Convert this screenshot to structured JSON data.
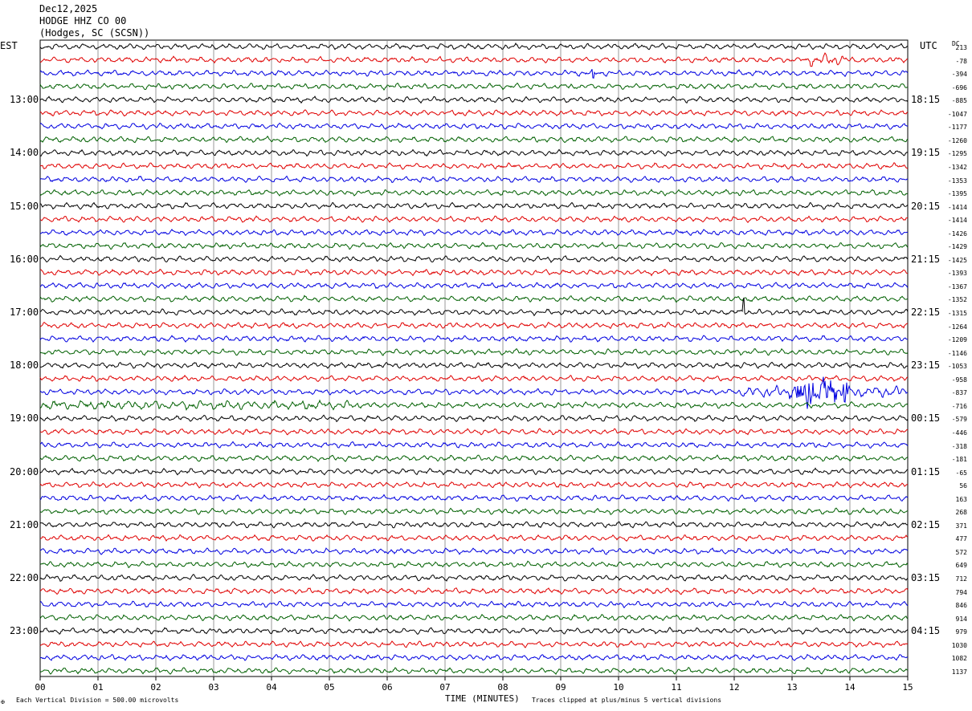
{
  "header": {
    "date": "Dec12,2025",
    "station": "HODGE HHZ CO 00",
    "location": "(Hodges, SC (SCSN))"
  },
  "axes": {
    "left_label": "EST",
    "right_label": "UTC",
    "dc_label": "DC",
    "xlabel": "TIME (MINUTES)",
    "x_ticks": [
      "00",
      "01",
      "02",
      "03",
      "04",
      "05",
      "06",
      "07",
      "08",
      "09",
      "10",
      "11",
      "12",
      "13",
      "14",
      "15"
    ]
  },
  "footer": {
    "scale_mark": "✠",
    "division_note": "Each Vertical Division =  500.00 microvolts",
    "clip_note": "Traces clipped at plus/minus 5 vertical divisions"
  },
  "colors": {
    "trace_cycle": [
      "#000000",
      "#e00000",
      "#0000e0",
      "#006000"
    ],
    "grid": "#808080",
    "background": "#ffffff"
  },
  "chart_data": {
    "type": "line",
    "title": "HODGE HHZ CO 00",
    "xlabel": "TIME (MINUTES)",
    "xlim": [
      0,
      15
    ],
    "minutes_per_line": 15,
    "left_time_labels": [
      {
        "row": 4,
        "label": "13:00"
      },
      {
        "row": 8,
        "label": "14:00"
      },
      {
        "row": 12,
        "label": "15:00"
      },
      {
        "row": 16,
        "label": "16:00"
      },
      {
        "row": 20,
        "label": "17:00"
      },
      {
        "row": 24,
        "label": "18:00"
      },
      {
        "row": 28,
        "label": "19:00"
      },
      {
        "row": 32,
        "label": "20:00"
      },
      {
        "row": 36,
        "label": "21:00"
      },
      {
        "row": 40,
        "label": "22:00"
      },
      {
        "row": 44,
        "label": "23:00"
      }
    ],
    "right_time_labels": [
      {
        "row": 4,
        "label": "18:15"
      },
      {
        "row": 8,
        "label": "19:15"
      },
      {
        "row": 12,
        "label": "20:15"
      },
      {
        "row": 16,
        "label": "21:15"
      },
      {
        "row": 20,
        "label": "22:15"
      },
      {
        "row": 24,
        "label": "23:15"
      },
      {
        "row": 28,
        "label": "00:15"
      },
      {
        "row": 32,
        "label": "01:15"
      },
      {
        "row": 36,
        "label": "02:15"
      },
      {
        "row": 40,
        "label": "03:15"
      },
      {
        "row": 44,
        "label": "04:15"
      }
    ],
    "dc_offsets": [
      "213",
      "-78",
      "-394",
      "-696",
      "-885",
      "-1047",
      "-1177",
      "-1260",
      "-1295",
      "-1342",
      "-1353",
      "-1395",
      "-1414",
      "-1414",
      "-1426",
      "-1429",
      "-1425",
      "-1393",
      "-1367",
      "-1352",
      "-1315",
      "-1264",
      "-1209",
      "-1146",
      "-1053",
      "-958",
      "-837",
      "-716",
      "-579",
      "-446",
      "-318",
      "-181",
      "-65",
      "56",
      "163",
      "268",
      "371",
      "477",
      "572",
      "649",
      "712",
      "794",
      "846",
      "914",
      "979",
      "1030",
      "1082",
      "1137"
    ],
    "events": [
      {
        "row": 2,
        "minute": 9.55,
        "amplitude": "spike"
      },
      {
        "row": 1,
        "minute": 13.6,
        "amplitude": "burst"
      },
      {
        "row": 26,
        "minute": 13.3,
        "amplitude": "earthquake"
      },
      {
        "row": 27,
        "minute": 1.0,
        "amplitude": "noise"
      },
      {
        "row": 20,
        "minute": 12.15,
        "amplitude": "spike"
      }
    ]
  }
}
